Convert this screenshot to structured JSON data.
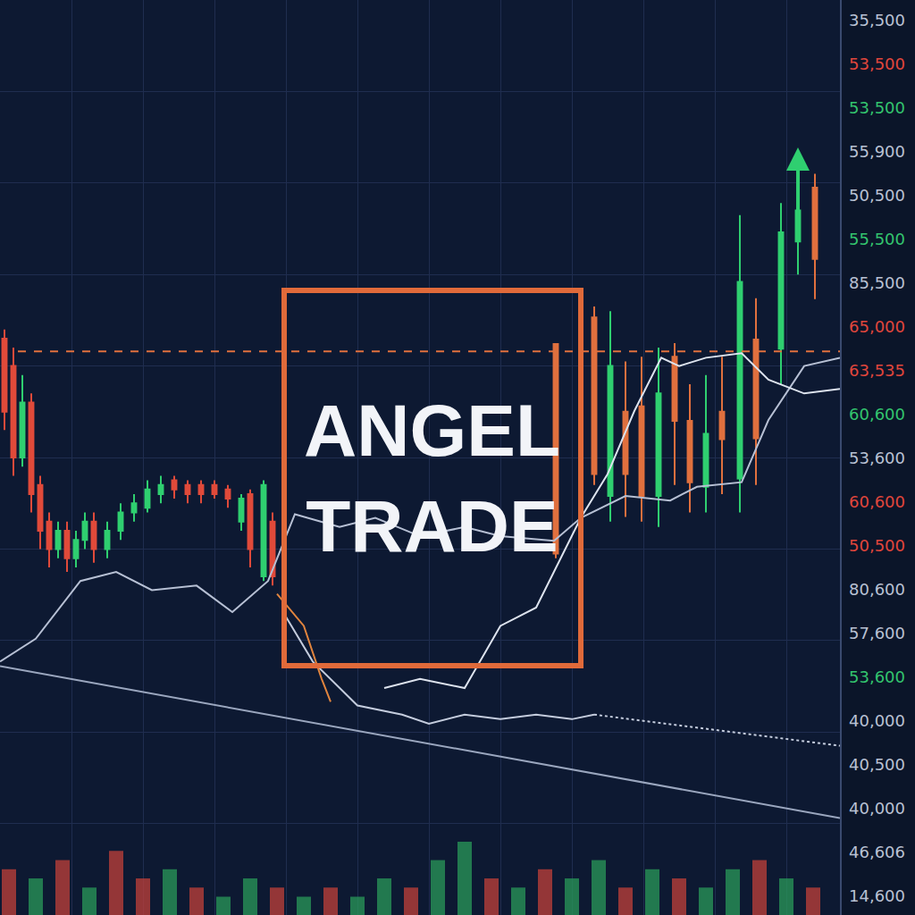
{
  "chart_data": {
    "type": "candlestick",
    "xlim": [
      0,
      94
    ],
    "xticks": [
      0,
      8,
      16,
      24,
      32,
      40,
      48,
      56,
      64,
      72,
      80,
      88
    ],
    "ylim": [
      0,
      100
    ],
    "yticks": [
      0,
      10,
      20,
      30,
      40,
      50,
      60,
      70,
      80,
      90,
      100
    ],
    "grid": true,
    "tick_labels": false,
    "annotations": [
      {
        "lines": [
          "ANGEL",
          "TRADE"
        ]
      }
    ],
    "price_labels": [
      {
        "label": "35,500",
        "color": "#b9c1d3"
      },
      {
        "label": "53,500",
        "color": "#e0463c"
      },
      {
        "label": "53,500",
        "color": "#33c46e"
      },
      {
        "label": "55,900",
        "color": "#b9c1d3"
      },
      {
        "label": "50,500",
        "color": "#b9c1d3"
      },
      {
        "label": "55,500",
        "color": "#33c46e"
      },
      {
        "label": "85,500",
        "color": "#b9c1d3"
      },
      {
        "label": "65,000",
        "color": "#e0463c"
      },
      {
        "label": "63,535",
        "color": "#e0463c"
      },
      {
        "label": "60,600",
        "color": "#33c46e"
      },
      {
        "label": "53,600",
        "color": "#b9c1d3"
      },
      {
        "label": "60,600",
        "color": "#e0463c"
      },
      {
        "label": "50,500",
        "color": "#e0463c"
      },
      {
        "label": "80,600",
        "color": "#b9c1d3"
      },
      {
        "label": "57,600",
        "color": "#b9c1d3"
      },
      {
        "label": "53,600",
        "color": "#33c46e"
      },
      {
        "label": "40,000",
        "color": "#b9c1d3"
      },
      {
        "label": "40,500",
        "color": "#b9c1d3"
      },
      {
        "label": "40,000",
        "color": "#b9c1d3"
      },
      {
        "label": "46,606",
        "color": "#b9c1d3"
      },
      {
        "label": "14,600",
        "color": "#b9c1d3"
      }
    ],
    "series": [
      {
        "type": "bar",
        "x": [
          1,
          4,
          7,
          10,
          13,
          16,
          19,
          22,
          25,
          28,
          31,
          34,
          37,
          40,
          43,
          46,
          49,
          52,
          55,
          58,
          61,
          64,
          67,
          70,
          73,
          76,
          79,
          82,
          85,
          88,
          91
        ],
        "values": [
          5,
          4,
          6,
          3,
          7,
          4,
          5,
          3,
          2,
          4,
          3,
          2,
          3,
          2,
          4,
          3,
          6,
          8,
          4,
          3,
          5,
          4,
          6,
          3,
          5,
          4,
          3,
          5,
          6,
          4,
          3
        ],
        "colors": [
          "#c2403a",
          "#2a9a5a",
          "#c2403a",
          "#2a9a5a",
          "#c2403a",
          "#c2403a",
          "#2a9a5a",
          "#c2403a",
          "#2a9a5a",
          "#2a9a5a",
          "#c2403a",
          "#2a9a5a",
          "#c2403a",
          "#2a9a5a",
          "#2a9a5a",
          "#c2403a",
          "#2a9a5a",
          "#2a9a5a",
          "#c2403a",
          "#2a9a5a",
          "#c2403a",
          "#2a9a5a",
          "#2a9a5a",
          "#c2403a",
          "#2a9a5a",
          "#c2403a",
          "#2a9a5a",
          "#2a9a5a",
          "#c2403a",
          "#2a9a5a",
          "#c2403a"
        ]
      },
      {
        "type": "line",
        "color": "#9aa6be",
        "line_style": "solid",
        "x": [
          0,
          94
        ],
        "values": [
          27.2,
          10.6
        ]
      },
      {
        "type": "line",
        "color": "#e0703e",
        "line_style": "dashed",
        "x": [
          2,
          94
        ],
        "values": [
          61.6,
          61.6
        ]
      },
      {
        "type": "line",
        "color": "#b7c0d4",
        "line_style": "solid",
        "x": [
          0,
          4,
          9,
          13,
          17,
          22,
          26,
          30,
          33,
          38,
          42,
          47,
          52,
          56,
          62,
          65,
          70,
          75,
          78,
          83,
          86,
          90,
          94
        ],
        "values": [
          27.7,
          30.2,
          36.5,
          37.5,
          35.5,
          36.0,
          33.1,
          36.5,
          43.8,
          42.4,
          43.4,
          41.4,
          42.4,
          41.4,
          40.9,
          43.4,
          45.8,
          45.3,
          46.8,
          47.3,
          54.1,
          60.0,
          60.9
        ]
      },
      {
        "type": "line",
        "color": "#c4ccdd",
        "line_style": "solid",
        "x": [
          32,
          35,
          40,
          45,
          48,
          52,
          56,
          60,
          64,
          66.5
        ],
        "values": [
          32.6,
          27.7,
          22.9,
          21.9,
          20.9,
          21.9,
          21.4,
          21.9,
          21.4,
          21.9
        ]
      },
      {
        "type": "line",
        "color": "#c4ccdd",
        "line_style": "dotted",
        "x": [
          66.5,
          94
        ],
        "values": [
          21.9,
          18.5
        ]
      },
      {
        "type": "line",
        "color": "#dde3ee",
        "line_style": "solid",
        "x": [
          43,
          47,
          52,
          56,
          60,
          65,
          68,
          71,
          74,
          76,
          79,
          83,
          86,
          90,
          94
        ],
        "values": [
          24.8,
          25.8,
          24.8,
          31.6,
          33.6,
          43.4,
          48.2,
          55.1,
          60.9,
          60.0,
          60.9,
          61.4,
          58.5,
          57.0,
          57.5
        ]
      },
      {
        "type": "line",
        "color": "#e0843e",
        "line_style": "solid",
        "x": [
          31,
          34,
          36,
          37
        ],
        "values": [
          35.1,
          31.6,
          25.8,
          23.3
        ]
      },
      {
        "type": "candlestick",
        "color": "#e04a3a",
        "x": [
          0.5,
          1.5,
          3.5,
          4.5,
          5.5,
          7.5,
          10.5,
          19.5,
          21,
          22.5,
          24,
          25.5,
          28,
          30.5
        ],
        "open": [
          63,
          60,
          56,
          47,
          43,
          42,
          43,
          47.5,
          47,
          47,
          47,
          46.5,
          46,
          43
        ],
        "high": [
          64,
          62,
          57,
          48,
          44,
          43,
          44,
          48,
          47.5,
          47.5,
          47.5,
          47,
          46.5,
          44
        ],
        "low": [
          53,
          48,
          44,
          40,
          38,
          37.5,
          38.5,
          45.5,
          45,
          45,
          45.5,
          44.5,
          38,
          36
        ],
        "close": [
          55,
          50,
          46,
          42,
          40,
          39,
          40,
          46.5,
          46,
          46,
          46,
          45.5,
          40,
          37
        ]
      },
      {
        "type": "candlestick",
        "color": "#e0703e",
        "x": [
          62.2,
          66.5,
          70,
          71.8,
          75.5,
          77.2,
          80.8,
          84.6,
          91.2
        ],
        "open": [
          62.4,
          65.3,
          55,
          55.6,
          61,
          54,
          55,
          62.9,
          79.5
        ],
        "high": [
          62.5,
          66.5,
          60.5,
          61,
          62.5,
          58,
          61,
          67.4,
          81
        ],
        "low": [
          39,
          47,
          43.5,
          43,
          47,
          44,
          46,
          47,
          67.3
        ],
        "close": [
          39.5,
          48.2,
          48.2,
          45.8,
          54,
          47.3,
          52,
          52.1,
          71.7
        ]
      },
      {
        "type": "candlestick",
        "color": "#2fcf70",
        "x": [
          2.5,
          6.5,
          8.5,
          9.5,
          12,
          13.5,
          15,
          16.5,
          18,
          27,
          29.5,
          68.3,
          73.7,
          79,
          82.8,
          87.4,
          89.3
        ],
        "open": [
          50,
          40,
          39,
          41,
          40,
          42,
          44,
          44.5,
          46,
          43,
          37,
          45.8,
          45.8,
          46.8,
          47.7,
          61.9,
          73.6
        ],
        "high": [
          59,
          43,
          42,
          44,
          43,
          45,
          46,
          47.5,
          48,
          46,
          47.5,
          66,
          62,
          59,
          76.5,
          77.8,
          81
        ],
        "low": [
          49,
          39,
          38,
          40,
          39,
          41,
          43,
          44,
          45,
          42,
          36.5,
          43,
          42.4,
          44,
          44,
          58,
          70
        ],
        "close": [
          56,
          42,
          41,
          43,
          42,
          44,
          45,
          46.5,
          47,
          45.5,
          47,
          60,
          57,
          52.6,
          69.2,
          74.6,
          77
        ]
      }
    ]
  }
}
